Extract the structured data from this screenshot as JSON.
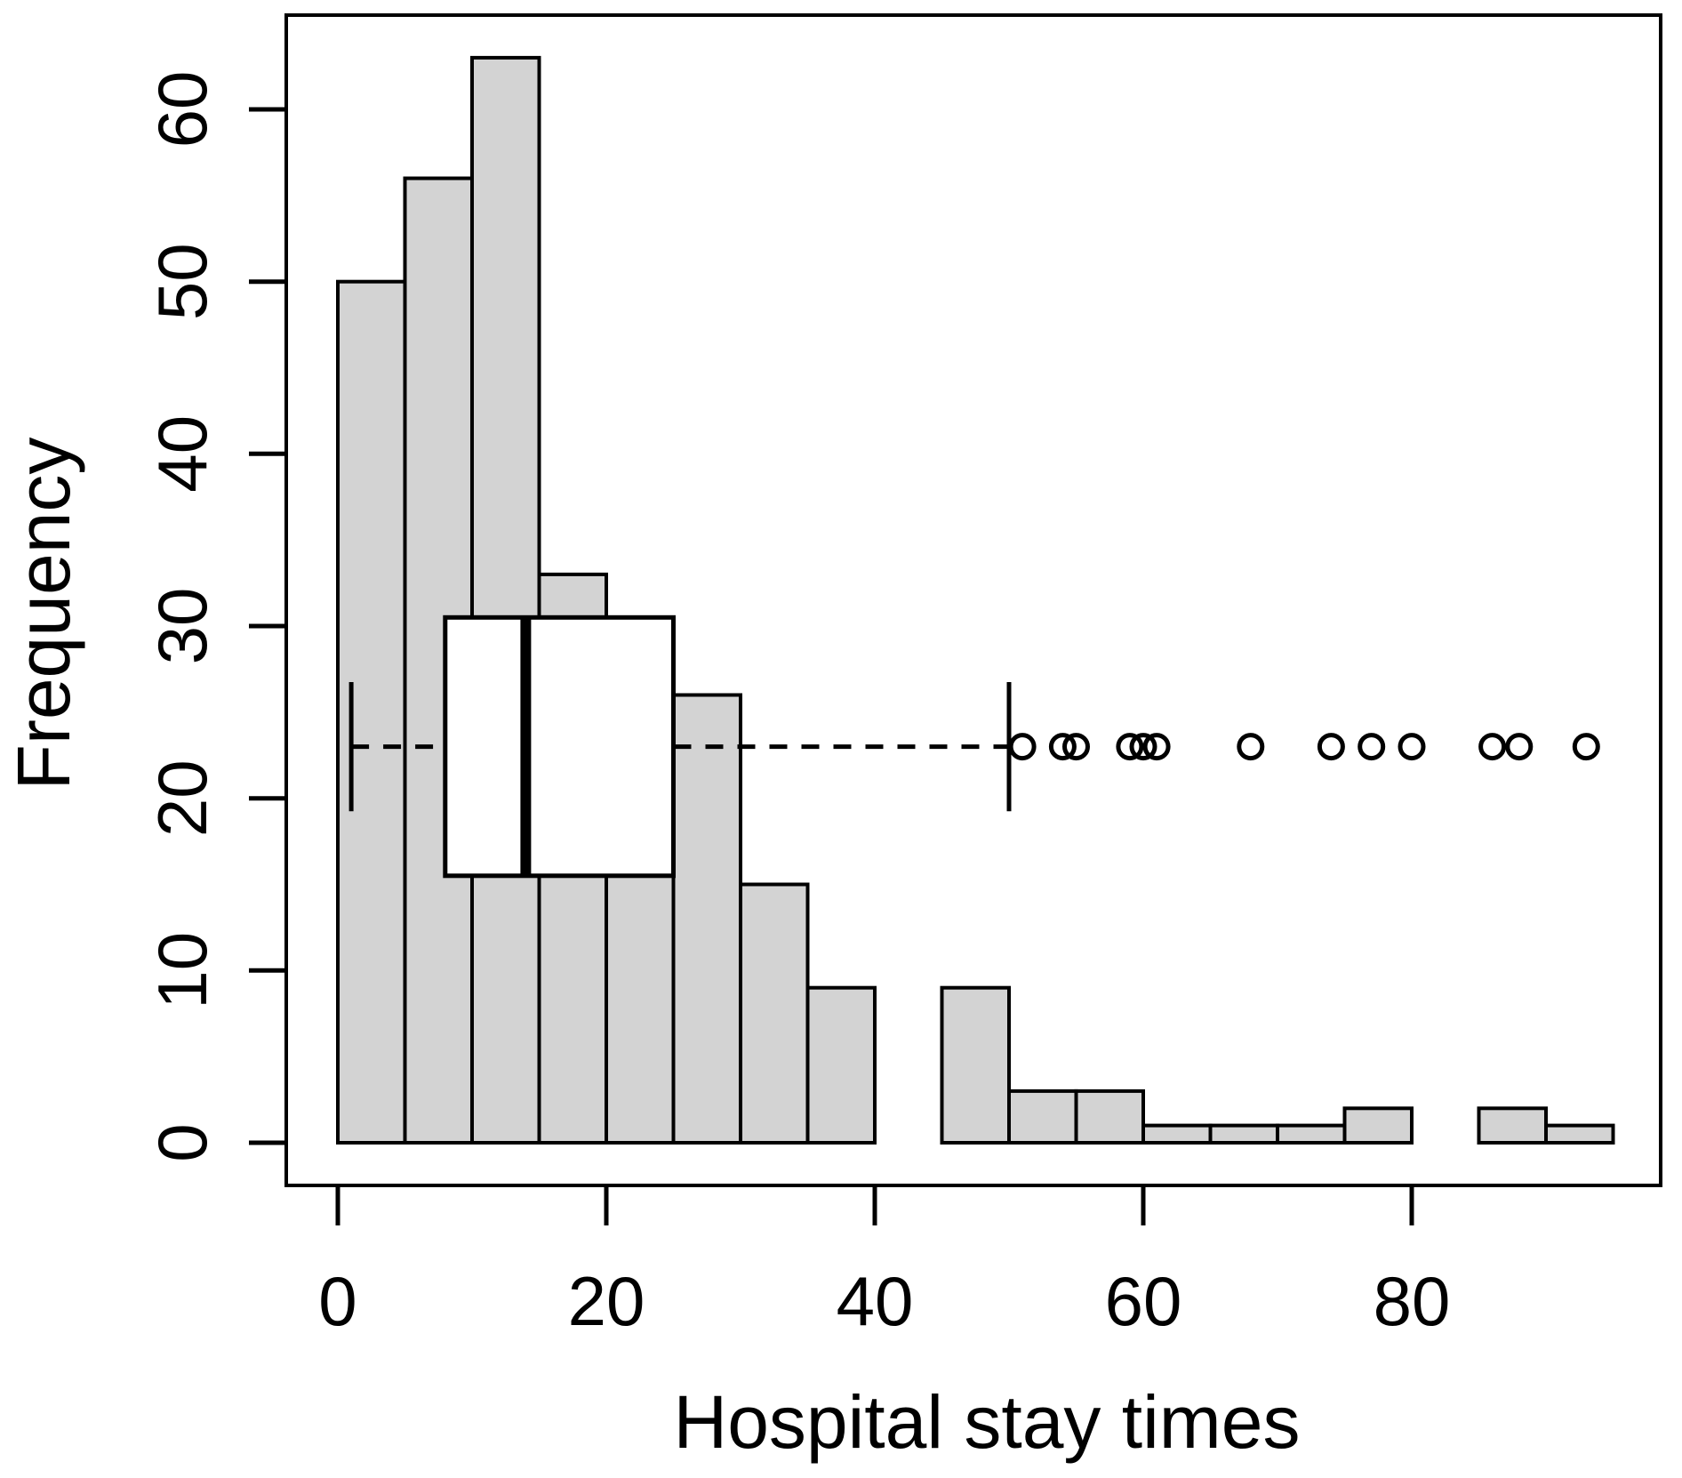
{
  "chart_data": {
    "type": "bar",
    "subtype": "histogram-with-horizontal-boxplot-overlay",
    "title": "",
    "xlabel": "Hospital stay times",
    "ylabel": "Frequency",
    "x_ticks": [
      0,
      20,
      40,
      60,
      80
    ],
    "y_ticks": [
      0,
      10,
      20,
      30,
      40,
      50,
      60
    ],
    "xlim": [
      -3.8,
      98.5
    ],
    "ylim": [
      0,
      65.5
    ],
    "grid": "off",
    "legend": "none",
    "bins": {
      "start": 0,
      "bin_width": 5,
      "categories": [
        "0-5",
        "5-10",
        "10-15",
        "15-20",
        "20-25",
        "25-30",
        "30-35",
        "35-40",
        "40-45",
        "45-50",
        "50-55",
        "55-60",
        "60-65",
        "65-70",
        "70-75",
        "75-80",
        "80-85",
        "85-90",
        "90-95"
      ],
      "counts": [
        50,
        56,
        63,
        33,
        30,
        26,
        15,
        9,
        0,
        9,
        3,
        3,
        1,
        1,
        1,
        2,
        0,
        2,
        1
      ],
      "note_hidden_bin": "bin 20-25 top is hidden behind the white boxplot box; height estimated 30"
    },
    "boxplot": {
      "orientation": "horizontal",
      "whisker_low": 1,
      "q1": 8,
      "median": 14,
      "q3": 25,
      "whisker_high": 50,
      "outliers": [
        51,
        54,
        55,
        59,
        60,
        61,
        68,
        74,
        77,
        80,
        86,
        88,
        93
      ],
      "center_frequency": 23,
      "box_half_height_freq": 7.5,
      "cap_half_height_freq": 3.75
    },
    "colors": {
      "bar_fill": "#d3d3d3",
      "stroke": "#000000",
      "box_fill": "#ffffff",
      "background": "#ffffff"
    }
  }
}
